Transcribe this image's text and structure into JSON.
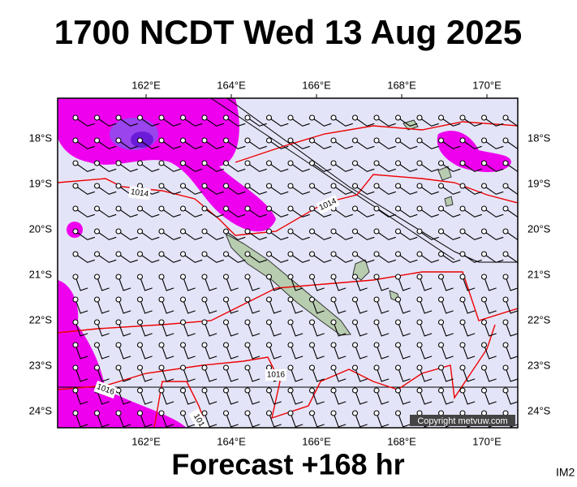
{
  "title": "1700 NCDT Wed 13 Aug 2025",
  "map": {
    "lon_labels": [
      "162°E",
      "164°E",
      "166°E",
      "168°E",
      "170°E"
    ],
    "lat_labels": [
      "18°S",
      "19°S",
      "20°S",
      "21°S",
      "22°S",
      "23°S",
      "24°S"
    ],
    "isobar_labels": [
      "1014",
      "1014",
      "1016",
      "1016",
      "101"
    ],
    "copyright": "Copyright metvuw.com"
  },
  "footer": "Forecast +168 hr",
  "image_id": "IM2"
}
